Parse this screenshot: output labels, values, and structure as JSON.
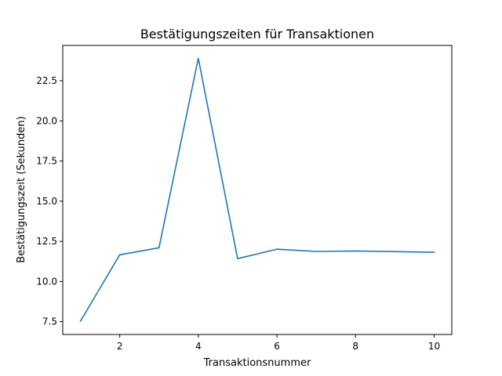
{
  "chart_data": {
    "type": "line",
    "title": "Bestätigungszeiten für Transaktionen",
    "xlabel": "Transaktionsnummer",
    "ylabel": "Bestätigungszeit (Sekunden)",
    "x": [
      1,
      2,
      3,
      4,
      5,
      6,
      7,
      8,
      9,
      10
    ],
    "series": [
      {
        "values": [
          7.52,
          11.66,
          12.1,
          23.9,
          11.42,
          12.01,
          11.87,
          11.9,
          11.86,
          11.82
        ],
        "color": "#1f77b4"
      }
    ],
    "xlim": [
      0.55,
      10.45
    ],
    "ylim": [
      6.7,
      24.7
    ],
    "xticks": [
      2,
      4,
      6,
      8,
      10
    ],
    "xtick_labels": [
      "2",
      "4",
      "6",
      "8",
      "10"
    ],
    "yticks": [
      7.5,
      10.0,
      12.5,
      15.0,
      17.5,
      20.0,
      22.5
    ],
    "ytick_labels": [
      "7.5",
      "10.0",
      "12.5",
      "15.0",
      "17.5",
      "20.0",
      "22.5"
    ],
    "grid": false,
    "legend": false
  }
}
